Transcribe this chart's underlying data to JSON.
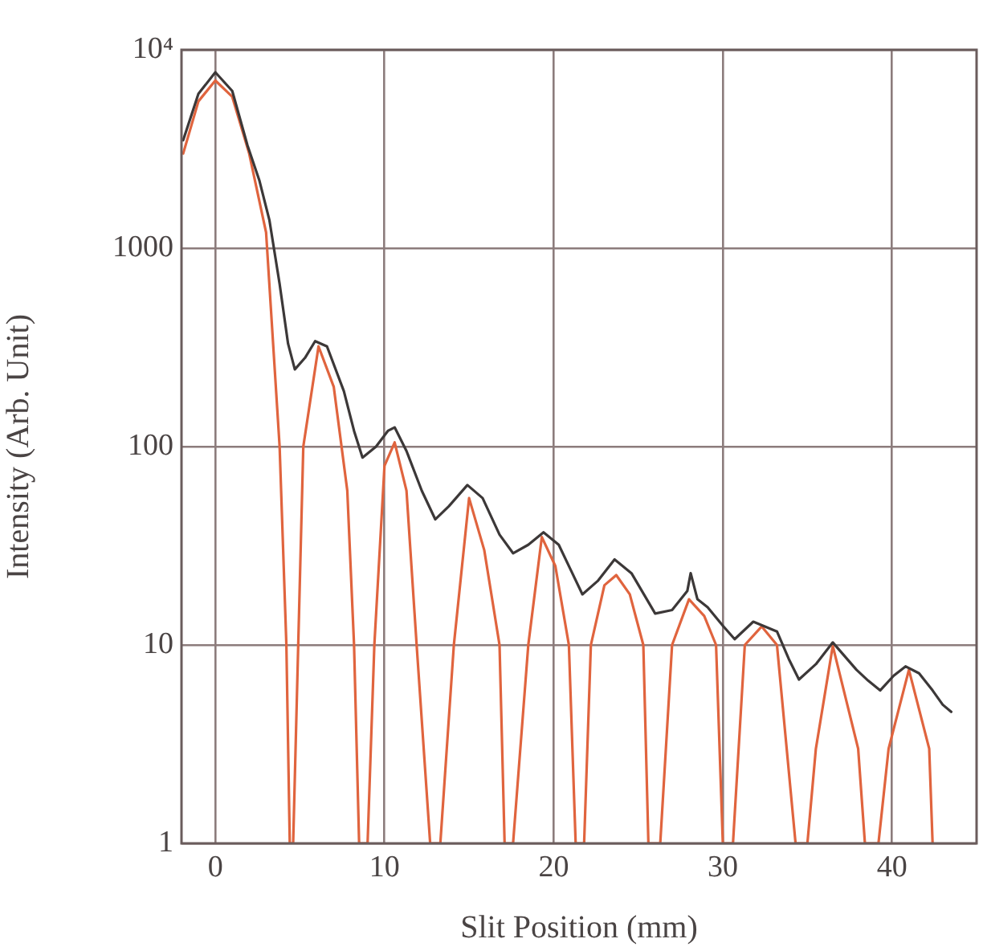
{
  "chart_data": {
    "type": "line",
    "xlabel": "Slit Position (mm)",
    "ylabel": "Intensity (Arb. Unit)",
    "log": "y",
    "grid": true,
    "marker": "none",
    "line_style": "solid",
    "xlim": [
      -2,
      45
    ],
    "ylim": [
      1,
      10000
    ],
    "xticks": [
      0,
      10,
      20,
      30,
      40
    ],
    "yticks": [
      1,
      10,
      100,
      1000,
      {
        "value": 10000,
        "label": "10⁴"
      }
    ],
    "series": [
      {
        "color": "#3c3838",
        "x": [
          -1.9,
          -1,
          0,
          1,
          1.9,
          2.6,
          3.2,
          3.8,
          4.3,
          4.7,
          5.3,
          5.9,
          6.6,
          7.6,
          8.2,
          8.7,
          9.5,
          10.2,
          10.6,
          11.3,
          12.2,
          13,
          13.8,
          14.9,
          15.8,
          16.8,
          17.6,
          18.5,
          19.4,
          20.3,
          21,
          21.7,
          22.6,
          23.6,
          24.6,
          26,
          27,
          27.9,
          28.1,
          28.5,
          29.1,
          30,
          30.7,
          31.8,
          33.2,
          33.9,
          34.5,
          35.5,
          36.5,
          37.9,
          38.6,
          39.3,
          40.1,
          40.8,
          41.6,
          42.4,
          43,
          43.5
        ],
        "values": [
          3500,
          6000,
          7700,
          6200,
          3300,
          2200,
          1380,
          660,
          330,
          245,
          280,
          340,
          320,
          190,
          120,
          88,
          100,
          120,
          125,
          95,
          60,
          43,
          50,
          64,
          55,
          36,
          29,
          32,
          37,
          32,
          24,
          18,
          21,
          27,
          23,
          14.4,
          15,
          18.7,
          23,
          17,
          15.5,
          12.5,
          10.7,
          13.1,
          11.7,
          8.5,
          6.7,
          8,
          10.3,
          7.5,
          6.6,
          5.9,
          7,
          7.8,
          7.2,
          5.9,
          5,
          4.6
        ]
      },
      {
        "color": "#e0643e",
        "x": [
          -1.9,
          -1,
          0,
          1,
          2,
          3,
          3.8,
          4.2,
          4.4,
          4.6,
          4.9,
          5.2,
          6.1,
          7,
          7.8,
          8.2,
          8.5,
          9,
          9.4,
          10,
          10.6,
          11.3,
          11.9,
          12.7,
          13.1,
          13.3,
          14.1,
          15,
          15.9,
          16.8,
          17.1,
          17.6,
          18.5,
          19.3,
          20.1,
          20.9,
          21.3,
          21.8,
          22.2,
          23,
          23.7,
          24.5,
          25.3,
          25.6,
          26.3,
          27,
          28,
          28.9,
          29.6,
          30,
          30.6,
          31.3,
          32.3,
          33.2,
          34.3,
          35,
          35.5,
          36.5,
          38,
          38.4,
          39.2,
          39.8,
          41,
          42.2,
          42.4
        ],
        "values": [
          3000,
          5500,
          7000,
          5800,
          3000,
          1200,
          100,
          10,
          1,
          1,
          10,
          100,
          320,
          200,
          60,
          10,
          1,
          1,
          10,
          80,
          105,
          60,
          10,
          1,
          1,
          1,
          10,
          55,
          30,
          10,
          1,
          1,
          10,
          35,
          25,
          10,
          1,
          1,
          10,
          20,
          22.5,
          18,
          10,
          1,
          1,
          10,
          17,
          14,
          10,
          1,
          1,
          10,
          12.4,
          10,
          1,
          1,
          3,
          9.9,
          3,
          1,
          1,
          3,
          7.5,
          3,
          1
        ]
      }
    ]
  }
}
